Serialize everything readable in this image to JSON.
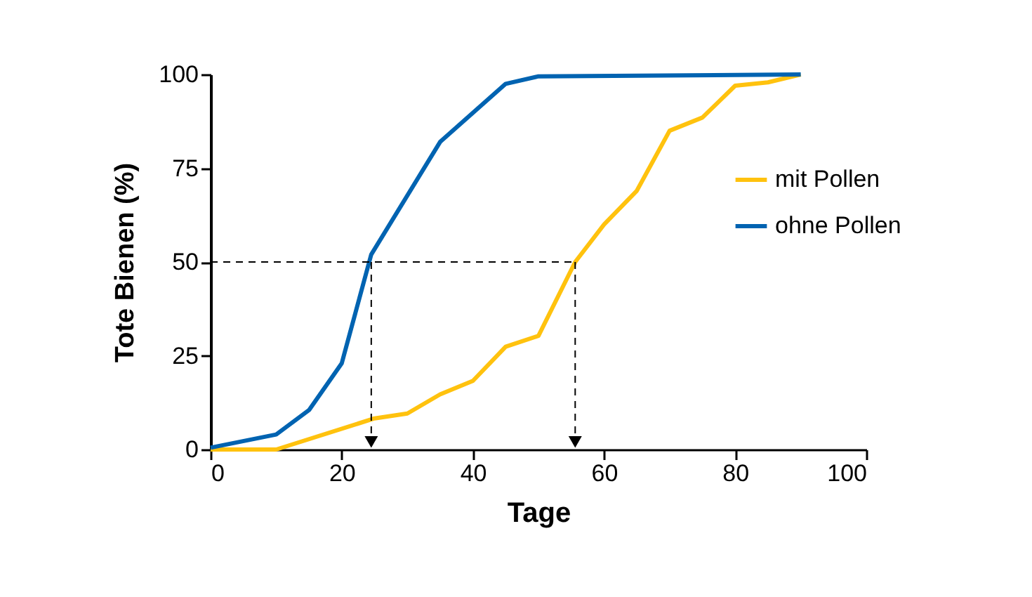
{
  "chart_data": {
    "type": "line",
    "xlabel": "Tage",
    "ylabel": "Tote Bienen (%)",
    "xlim": [
      0,
      100
    ],
    "xticks": [
      0,
      20,
      40,
      60,
      80,
      100
    ],
    "ylim": [
      0,
      100
    ],
    "yticks": [
      0,
      25,
      50,
      75,
      100
    ],
    "grid": false,
    "legend": "right",
    "marker": "none",
    "line_style": "solid",
    "series": [
      {
        "name": "mit Pollen",
        "color": "#ffc20e",
        "x": [
          0,
          10,
          25,
          30,
          35,
          40,
          45,
          50,
          55.6,
          60,
          65,
          70,
          75,
          80,
          85,
          90
        ],
        "values": [
          0,
          0,
          8.3,
          9.6,
          14.7,
          18.3,
          27.4,
          30.3,
          50,
          60,
          69,
          85,
          88.5,
          97,
          97.9,
          100
        ]
      },
      {
        "name": "ohne Pollen",
        "color": "#0063b1",
        "x": [
          0,
          10,
          15,
          20,
          24.5,
          35,
          45,
          50,
          90
        ],
        "values": [
          0.5,
          4,
          10.5,
          23,
          52,
          82,
          97.5,
          99.5,
          100
        ]
      }
    ],
    "ref_lines": [
      {
        "axis": "y",
        "value": 50,
        "line_style": "dashed"
      },
      {
        "axis": "x",
        "value": 24.5,
        "line_style": "dashed"
      },
      {
        "axis": "x",
        "value": 55.6,
        "line_style": "dashed"
      }
    ]
  }
}
